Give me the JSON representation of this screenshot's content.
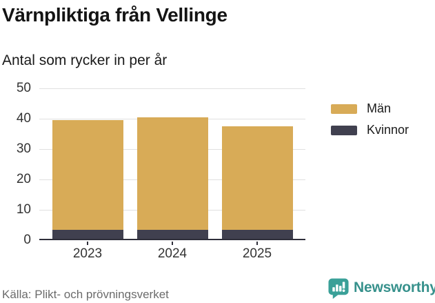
{
  "header": {
    "title": "Värnpliktiga från Vellinge",
    "subtitle": "Antal som rycker in per år"
  },
  "chart_data": {
    "type": "bar",
    "stacked": true,
    "title": "Värnpliktiga från Vellinge",
    "subtitle": "Antal som rycker in per år",
    "categories": [
      "2023",
      "2024",
      "2025"
    ],
    "series": [
      {
        "name": "Män",
        "color": "#d8ab57",
        "values": [
          36,
          37,
          34
        ]
      },
      {
        "name": "Kvinnor",
        "color": "#40404f",
        "values": [
          3,
          3,
          3
        ]
      }
    ],
    "stack_totals": [
      39,
      40,
      37
    ],
    "ylim": [
      0,
      50
    ],
    "yticks": [
      0,
      10,
      20,
      30,
      40,
      50
    ],
    "xlabel": "",
    "ylabel": "",
    "grid": "horizontal",
    "legend_position": "right",
    "gridline_color": "#e0e0e0",
    "axis_color": "#2e2e3a",
    "tick_label_color": "#333333"
  },
  "footer": {
    "source": "Källa: Plikt- och prövningsverket",
    "brand_name": "Newsworthy",
    "brand_color": "#37918c",
    "brand_icon": "newsworthy-speech-bubble-bar-chart-icon",
    "brand_icon_color": "#3aa098"
  }
}
